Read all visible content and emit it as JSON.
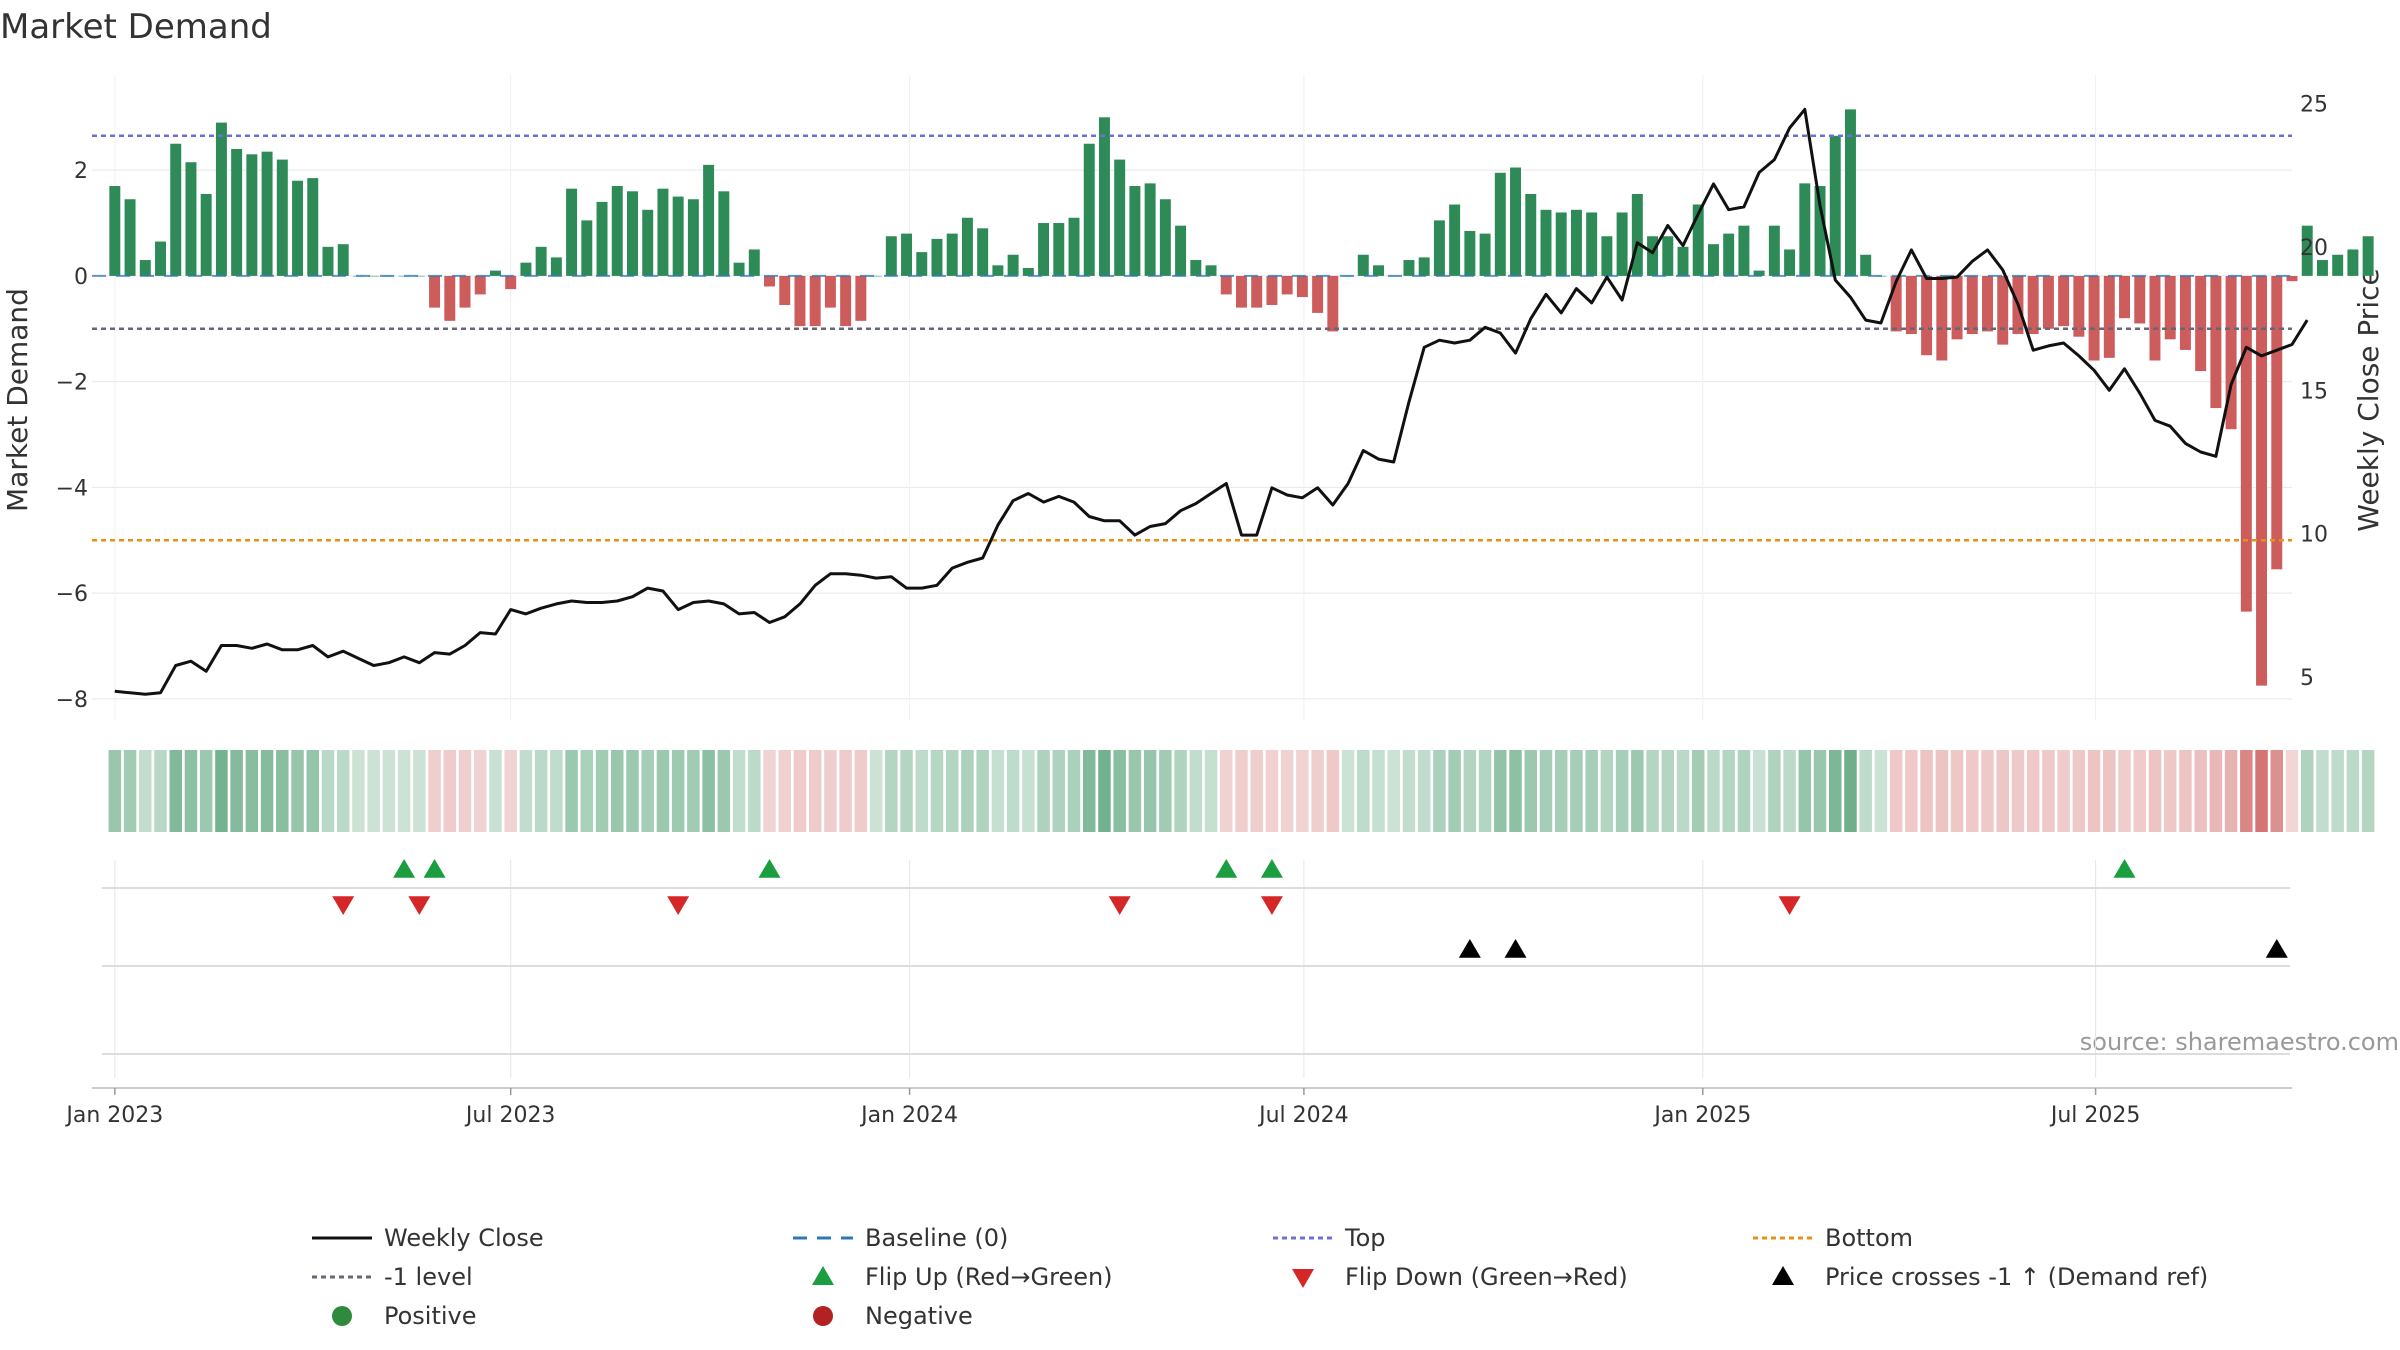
{
  "chart_data": {
    "type": "bar",
    "title": "Market Demand",
    "ylabel_left": "Market Demand",
    "ylabel_right": "Weekly Close Price",
    "source": "source: sharemaestro.com",
    "y_left_ticks": [
      "2",
      "0",
      "−2",
      "−4",
      "−6",
      "−8"
    ],
    "y_left_tick_values": [
      2,
      0,
      -2,
      -4,
      -6,
      -8
    ],
    "y_left_range": [
      -8.4,
      3.8
    ],
    "y_right_ticks": [
      "25",
      "20",
      "15",
      "10",
      "5"
    ],
    "y_right_tick_values": [
      25,
      20,
      15,
      10,
      5
    ],
    "y_right_range": [
      3.5,
      26
    ],
    "x_range_weeks": [
      -1.5,
      143
    ],
    "x_ticks": [
      {
        "label": "Jan 2023",
        "week": 0
      },
      {
        "label": "Jul 2023",
        "week": 26
      },
      {
        "label": "Jan 2024",
        "week": 52.2
      },
      {
        "label": "Jul 2024",
        "week": 78.1
      },
      {
        "label": "Jan 2025",
        "week": 104.3
      },
      {
        "label": "Jul 2025",
        "week": 130.1
      }
    ],
    "reference_lines": {
      "top": 2.65,
      "minus_one_level": -1,
      "bottom": -5,
      "baseline": 0
    },
    "series": [
      {
        "name": "Market Demand",
        "type": "bar",
        "values": [
          1.7,
          1.45,
          0.3,
          0.65,
          2.5,
          2.15,
          1.55,
          2.9,
          2.4,
          2.3,
          2.35,
          2.2,
          1.8,
          1.85,
          0.55,
          0.6,
          0,
          0,
          0,
          0,
          0,
          -0.6,
          -0.85,
          -0.6,
          -0.35,
          0.1,
          -0.25,
          0.25,
          0.55,
          0.35,
          1.65,
          1.05,
          1.4,
          1.7,
          1.6,
          1.25,
          1.65,
          1.5,
          1.45,
          2.1,
          1.6,
          0.25,
          0.5,
          -0.2,
          -0.55,
          -0.95,
          -0.95,
          -0.6,
          -0.95,
          -0.85,
          0,
          0.75,
          0.8,
          0.45,
          0.7,
          0.8,
          1.1,
          0.9,
          0.2,
          0.4,
          0.15,
          1.0,
          1.0,
          1.1,
          2.5,
          3.0,
          2.2,
          1.7,
          1.75,
          1.45,
          0.95,
          0.3,
          0.2,
          -0.35,
          -0.6,
          -0.6,
          -0.55,
          -0.35,
          -0.4,
          -0.7,
          -1.05,
          0,
          0.4,
          0.2,
          0,
          0.3,
          0.35,
          1.05,
          1.35,
          0.85,
          0.8,
          1.95,
          2.05,
          1.55,
          1.25,
          1.2,
          1.25,
          1.2,
          0.75,
          1.2,
          1.55,
          0.75,
          0.75,
          0.55,
          1.35,
          0.6,
          0.8,
          0.95,
          0.1,
          0.95,
          0.5,
          1.75,
          1.7,
          2.65,
          3.15,
          0.4,
          0,
          -1.05,
          -1.1,
          -1.5,
          -1.6,
          -1.2,
          -1.1,
          -1.05,
          -1.3,
          -1.1,
          -1.1,
          -1.0,
          -0.95,
          -1.15,
          -1.6,
          -1.55,
          -0.8,
          -0.9,
          -1.6,
          -1.2,
          -1.4,
          -1.8,
          -2.5,
          -2.9,
          -6.35,
          -7.75,
          -5.55,
          -0.1,
          0.95,
          0.3,
          0.4,
          0.5,
          0.75
        ]
      },
      {
        "name": "Weekly Close",
        "type": "line",
        "values": [
          4.5,
          4.45,
          4.4,
          4.45,
          5.4,
          5.55,
          5.2,
          6.1,
          6.1,
          6.0,
          6.15,
          5.95,
          5.95,
          6.1,
          5.7,
          5.9,
          5.65,
          5.4,
          5.5,
          5.7,
          5.5,
          5.85,
          5.8,
          6.1,
          6.55,
          6.5,
          7.35,
          7.2,
          7.4,
          7.55,
          7.65,
          7.6,
          7.6,
          7.65,
          7.8,
          8.1,
          8.0,
          7.35,
          7.6,
          7.65,
          7.55,
          7.2,
          7.25,
          6.9,
          7.1,
          7.55,
          8.2,
          8.6,
          8.6,
          8.55,
          8.45,
          8.5,
          8.1,
          8.1,
          8.2,
          8.8,
          9.0,
          9.15,
          10.3,
          11.15,
          11.4,
          11.1,
          11.3,
          11.1,
          10.6,
          10.45,
          10.45,
          9.95,
          10.25,
          10.35,
          10.8,
          11.05,
          11.4,
          11.75,
          9.95,
          9.95,
          11.6,
          11.35,
          11.25,
          11.6,
          11.0,
          11.75,
          12.9,
          12.6,
          12.5,
          14.6,
          16.5,
          16.75,
          16.65,
          16.75,
          17.2,
          17.0,
          16.3,
          17.5,
          18.35,
          17.7,
          18.55,
          18.05,
          18.95,
          18.15,
          20.15,
          19.8,
          20.75,
          20.05,
          21.15,
          22.2,
          21.3,
          21.4,
          22.6,
          23.05,
          24.15,
          24.8,
          21.45,
          18.85,
          18.25,
          17.45,
          17.35,
          18.8,
          19.9,
          18.9,
          18.9,
          18.95,
          19.5,
          19.9,
          19.2,
          18.0,
          16.4,
          16.55,
          16.65,
          16.2,
          15.7,
          15.0,
          15.75,
          14.9,
          13.95,
          13.75,
          13.15,
          12.85,
          12.7,
          15.2,
          16.5,
          16.2,
          16.4,
          16.6,
          17.45
        ]
      },
      {
        "name": "Flip Up (Red→Green)",
        "type": "marker",
        "weeks": [
          19,
          21,
          43,
          73,
          76,
          132
        ]
      },
      {
        "name": "Flip Down (Green→Red)",
        "type": "marker",
        "weeks": [
          15,
          20,
          37,
          66,
          76,
          110
        ]
      },
      {
        "name": "Price crosses -1 ↑ (Demand ref)",
        "type": "marker",
        "weeks": [
          89,
          92,
          142
        ]
      }
    ]
  },
  "legend": {
    "items": [
      {
        "label": "Weekly Close",
        "kind": "line",
        "color": "#111111"
      },
      {
        "label": "Baseline (0)",
        "kind": "dash",
        "color": "#2a78b7"
      },
      {
        "label": "Top",
        "kind": "dot",
        "color": "#6f6fd0"
      },
      {
        "label": "Bottom",
        "kind": "dot",
        "color": "#e69018"
      },
      {
        "label": "-1 level",
        "kind": "dot",
        "color": "#666677"
      },
      {
        "label": "Flip Up (Red→Green)",
        "kind": "tri-up",
        "color": "#1a9e3f"
      },
      {
        "label": "Flip Down (Green→Red)",
        "kind": "tri-down",
        "color": "#d62728"
      },
      {
        "label": "Price crosses -1 ↑ (Demand ref)",
        "kind": "tri-up",
        "color": "#000000"
      },
      {
        "label": "Positive",
        "kind": "circle",
        "color": "#2e8b3e"
      },
      {
        "label": "Negative",
        "kind": "circle",
        "color": "#b22222"
      }
    ]
  },
  "colors": {
    "positive_bar": "#2e8b57",
    "negative_bar": "#cd5c5c",
    "price_line": "#111111",
    "top_line": "#6f6fd0",
    "bottom_line": "#e69018",
    "minus_one_line": "#666677",
    "baseline": "#2a78b7",
    "flip_up": "#1a9e3f",
    "flip_down": "#d62728",
    "cross": "#000000"
  }
}
